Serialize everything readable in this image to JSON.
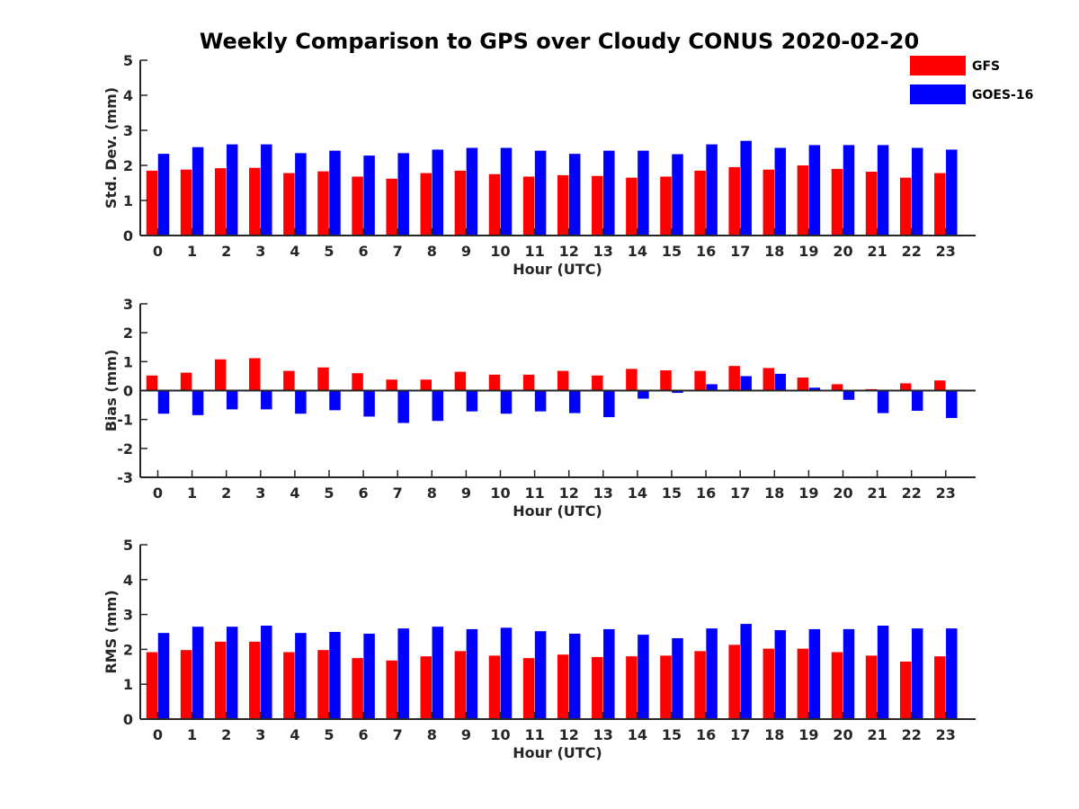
{
  "chart_data": {
    "type": "bar",
    "title": "Weekly Comparison to GPS over Cloudy CONUS 2020-02-20",
    "legend": {
      "placement": "top-right",
      "entries": [
        {
          "name": "GFS",
          "color": "#ff0000"
        },
        {
          "name": "GOES-16",
          "color": "#0000ff"
        }
      ]
    },
    "categories": [
      "0",
      "1",
      "2",
      "3",
      "4",
      "5",
      "6",
      "7",
      "8",
      "9",
      "10",
      "11",
      "12",
      "13",
      "14",
      "15",
      "16",
      "17",
      "18",
      "19",
      "20",
      "21",
      "22",
      "23"
    ],
    "panels": [
      {
        "ylabel": "Std. Dev. (mm)",
        "xlabel": "Hour (UTC)",
        "ylim": [
          0,
          5
        ],
        "yticks": [
          "0",
          "1",
          "2",
          "3",
          "4",
          "5"
        ],
        "series": [
          {
            "name": "GFS",
            "color": "#ff0000",
            "values": [
              1.85,
              1.88,
              1.92,
              1.93,
              1.78,
              1.83,
              1.68,
              1.62,
              1.78,
              1.85,
              1.75,
              1.68,
              1.72,
              1.7,
              1.65,
              1.68,
              1.85,
              1.95,
              1.88,
              2.0,
              1.9,
              1.82,
              1.65,
              1.78
            ]
          },
          {
            "name": "GOES-16",
            "color": "#0000ff",
            "values": [
              2.33,
              2.52,
              2.6,
              2.6,
              2.35,
              2.42,
              2.28,
              2.35,
              2.45,
              2.5,
              2.5,
              2.42,
              2.33,
              2.42,
              2.42,
              2.32,
              2.6,
              2.7,
              2.5,
              2.58,
              2.58,
              2.58,
              2.5,
              2.45
            ]
          }
        ]
      },
      {
        "ylabel": "Bias (mm)",
        "xlabel": "Hour (UTC)",
        "ylim": [
          -3,
          3
        ],
        "yticks": [
          "-3",
          "-2",
          "-1",
          "0",
          "1",
          "2",
          "3"
        ],
        "series": [
          {
            "name": "GFS",
            "color": "#ff0000",
            "values": [
              0.52,
              0.62,
              1.08,
              1.12,
              0.68,
              0.8,
              0.6,
              0.38,
              0.38,
              0.65,
              0.55,
              0.55,
              0.68,
              0.52,
              0.75,
              0.7,
              0.68,
              0.85,
              0.78,
              0.45,
              0.22,
              0.05,
              0.25,
              0.35
            ]
          },
          {
            "name": "GOES-16",
            "color": "#0000ff",
            "values": [
              -0.8,
              -0.85,
              -0.65,
              -0.65,
              -0.8,
              -0.68,
              -0.9,
              -1.12,
              -1.05,
              -0.72,
              -0.8,
              -0.72,
              -0.78,
              -0.92,
              -0.28,
              -0.08,
              0.22,
              0.5,
              0.58,
              0.1,
              -0.32,
              -0.78,
              -0.7,
              -0.95
            ]
          }
        ]
      },
      {
        "ylabel": "RMS (mm)",
        "xlabel": "Hour (UTC)",
        "ylim": [
          0,
          5
        ],
        "yticks": [
          "0",
          "1",
          "2",
          "3",
          "4",
          "5"
        ],
        "series": [
          {
            "name": "GFS",
            "color": "#ff0000",
            "values": [
              1.92,
              1.98,
              2.22,
              2.22,
              1.92,
              1.98,
              1.75,
              1.68,
              1.8,
              1.95,
              1.82,
              1.75,
              1.85,
              1.78,
              1.8,
              1.82,
              1.95,
              2.13,
              2.02,
              2.02,
              1.92,
              1.82,
              1.65,
              1.8
            ]
          },
          {
            "name": "GOES-16",
            "color": "#0000ff",
            "values": [
              2.47,
              2.65,
              2.65,
              2.68,
              2.47,
              2.5,
              2.45,
              2.6,
              2.65,
              2.58,
              2.62,
              2.52,
              2.45,
              2.58,
              2.42,
              2.32,
              2.6,
              2.73,
              2.55,
              2.58,
              2.58,
              2.68,
              2.6,
              2.6
            ]
          }
        ]
      }
    ]
  }
}
